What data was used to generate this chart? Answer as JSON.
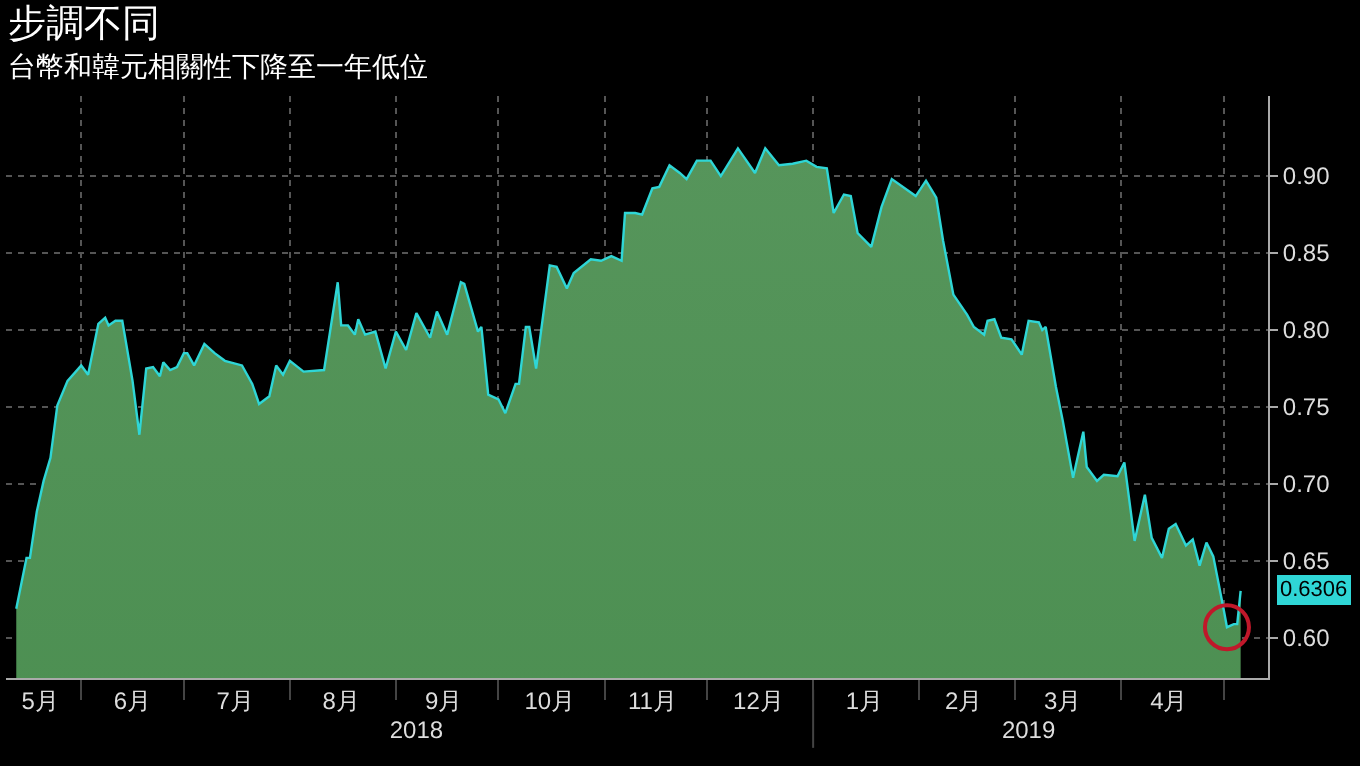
{
  "chart_data": {
    "type": "area",
    "title": "步調不同",
    "subtitle": "台幣和韓元相關性下降至一年低位",
    "x": [
      "2018-05-13",
      "2018-05-16",
      "2018-05-17",
      "2018-05-19",
      "2018-05-21",
      "2018-05-23",
      "2018-05-25",
      "2018-05-28",
      "2018-06-01",
      "2018-06-03",
      "2018-06-06",
      "2018-06-08",
      "2018-06-09",
      "2018-06-11",
      "2018-06-13",
      "2018-06-16",
      "2018-06-18",
      "2018-06-20",
      "2018-06-22",
      "2018-06-24",
      "2018-06-25",
      "2018-06-27",
      "2018-06-29",
      "2018-07-01",
      "2018-07-02",
      "2018-07-04",
      "2018-07-07",
      "2018-07-10",
      "2018-07-13",
      "2018-07-18",
      "2018-07-21",
      "2018-07-23",
      "2018-07-26",
      "2018-07-28",
      "2018-07-30",
      "2018-08-01",
      "2018-08-05",
      "2018-08-11",
      "2018-08-15",
      "2018-08-16",
      "2018-08-18",
      "2018-08-20",
      "2018-08-21",
      "2018-08-23",
      "2018-08-26",
      "2018-08-29",
      "2018-09-01",
      "2018-09-04",
      "2018-09-07",
      "2018-09-11",
      "2018-09-13",
      "2018-09-16",
      "2018-09-20",
      "2018-09-21",
      "2018-09-25",
      "2018-09-26",
      "2018-09-28",
      "2018-10-01",
      "2018-10-03",
      "2018-10-06",
      "2018-10-07",
      "2018-10-09",
      "2018-10-10",
      "2018-10-12",
      "2018-10-16",
      "2018-10-18",
      "2018-10-21",
      "2018-10-23",
      "2018-10-28",
      "2018-10-31",
      "2018-11-03",
      "2018-11-06",
      "2018-11-07",
      "2018-11-10",
      "2018-11-12",
      "2018-11-15",
      "2018-11-17",
      "2018-11-20",
      "2018-11-23",
      "2018-11-25",
      "2018-11-28",
      "2018-12-02",
      "2018-12-05",
      "2018-12-10",
      "2018-12-15",
      "2018-12-18",
      "2018-12-22",
      "2018-12-26",
      "2018-12-30",
      "2019-01-02",
      "2019-01-05",
      "2019-01-07",
      "2019-01-10",
      "2019-01-12",
      "2019-01-14",
      "2019-01-18",
      "2019-01-21",
      "2019-01-24",
      "2019-01-31",
      "2019-02-03",
      "2019-02-06",
      "2019-02-08",
      "2019-02-11",
      "2019-02-15",
      "2019-02-17",
      "2019-02-20",
      "2019-02-21",
      "2019-02-23",
      "2019-02-25",
      "2019-02-28",
      "2019-03-03",
      "2019-03-05",
      "2019-03-08",
      "2019-03-09",
      "2019-03-10",
      "2019-03-13",
      "2019-03-15",
      "2019-03-18",
      "2019-03-21",
      "2019-03-22",
      "2019-03-25",
      "2019-03-27",
      "2019-03-31",
      "2019-04-02",
      "2019-04-05",
      "2019-04-08",
      "2019-04-10",
      "2019-04-13",
      "2019-04-15",
      "2019-04-17",
      "2019-04-20",
      "2019-04-22",
      "2019-04-24",
      "2019-04-26",
      "2019-04-28",
      "2019-05-01",
      "2019-05-02",
      "2019-05-04",
      "2019-05-05",
      "2019-05-06"
    ],
    "series": [
      {
        "color": "#3f8745",
        "values": [
          0.619,
          0.652,
          0.652,
          0.682,
          0.702,
          0.717,
          0.751,
          0.767,
          0.777,
          0.771,
          0.804,
          0.808,
          0.803,
          0.806,
          0.806,
          0.767,
          0.732,
          0.775,
          0.776,
          0.77,
          0.779,
          0.774,
          0.776,
          0.785,
          0.785,
          0.777,
          0.791,
          0.785,
          0.78,
          0.777,
          0.765,
          0.752,
          0.757,
          0.777,
          0.771,
          0.78,
          0.773,
          0.774,
          0.831,
          0.803,
          0.803,
          0.797,
          0.807,
          0.797,
          0.799,
          0.775,
          0.799,
          0.787,
          0.811,
          0.795,
          0.812,
          0.797,
          0.831,
          0.83,
          0.799,
          0.802,
          0.758,
          0.755,
          0.746,
          0.765,
          0.765,
          0.802,
          0.802,
          0.775,
          0.842,
          0.841,
          0.827,
          0.837,
          0.846,
          0.845,
          0.848,
          0.845,
          0.876,
          0.876,
          0.875,
          0.892,
          0.893,
          0.907,
          0.902,
          0.898,
          0.91,
          0.91,
          0.9,
          0.918,
          0.902,
          0.918,
          0.907,
          0.908,
          0.91,
          0.906,
          0.905,
          0.876,
          0.888,
          0.887,
          0.863,
          0.854,
          0.88,
          0.898,
          0.887,
          0.897,
          0.886,
          0.858,
          0.823,
          0.81,
          0.802,
          0.797,
          0.806,
          0.807,
          0.795,
          0.794,
          0.784,
          0.806,
          0.805,
          0.8,
          0.802,
          0.763,
          0.741,
          0.704,
          0.734,
          0.711,
          0.702,
          0.706,
          0.705,
          0.714,
          0.663,
          0.693,
          0.665,
          0.652,
          0.671,
          0.674,
          0.66,
          0.664,
          0.647,
          0.662,
          0.653,
          0.619,
          0.607,
          0.609,
          0.609,
          0.6306
        ]
      }
    ],
    "xlim": [
      "2018-05-10",
      "2019-05-14"
    ],
    "xticks": [
      {
        "value": "2018-05-20",
        "label": "5月"
      },
      {
        "value": "2018-06-16",
        "label": "6月"
      },
      {
        "value": "2018-07-16",
        "label": "7月"
      },
      {
        "value": "2018-08-16",
        "label": "8月"
      },
      {
        "value": "2018-09-15",
        "label": "9月"
      },
      {
        "value": "2018-10-16",
        "label": "10月"
      },
      {
        "value": "2018-11-15",
        "label": "11月"
      },
      {
        "value": "2018-12-16",
        "label": "12月"
      },
      {
        "value": "2019-01-16",
        "label": "1月"
      },
      {
        "value": "2019-02-14",
        "label": "2月"
      },
      {
        "value": "2019-03-15",
        "label": "3月"
      },
      {
        "value": "2019-04-15",
        "label": "4月"
      },
      {
        "value": "2018-06-01",
        "label": null
      },
      {
        "value": "2018-07-01",
        "label": null
      },
      {
        "value": "2018-08-01",
        "label": null
      },
      {
        "value": "2018-09-01",
        "label": null
      },
      {
        "value": "2018-10-01",
        "label": null
      },
      {
        "value": "2018-11-01",
        "label": null
      },
      {
        "value": "2018-12-01",
        "label": null
      },
      {
        "value": "2019-01-01",
        "label": null
      },
      {
        "value": "2019-02-01",
        "label": null
      },
      {
        "value": "2019-03-01",
        "label": null
      },
      {
        "value": "2019-04-01",
        "label": null
      },
      {
        "value": "2019-05-01",
        "label": null
      }
    ],
    "x2lim": [
      "2018-05-10",
      "2019-05-14"
    ],
    "x2ticks": [
      {
        "value": "2018-09-07",
        "label": "2018"
      },
      {
        "value": "2019-03-05",
        "label": "2019"
      },
      {
        "value": "2019-01-01",
        "label": null
      }
    ],
    "ylim": [
      0.574,
      0.952
    ],
    "yticks": [
      {
        "value": 0.6,
        "label": "0.60"
      },
      0.65,
      {
        "value": 0.7,
        "label": "0.70"
      },
      0.75,
      {
        "value": 0.8,
        "label": "0.80"
      },
      0.85,
      {
        "value": 0.9,
        "label": "0.90"
      }
    ],
    "grid": true,
    "annotations": [
      {
        "text": "0.6306",
        "x": "2019-05-06",
        "y": 0.6306
      }
    ]
  }
}
